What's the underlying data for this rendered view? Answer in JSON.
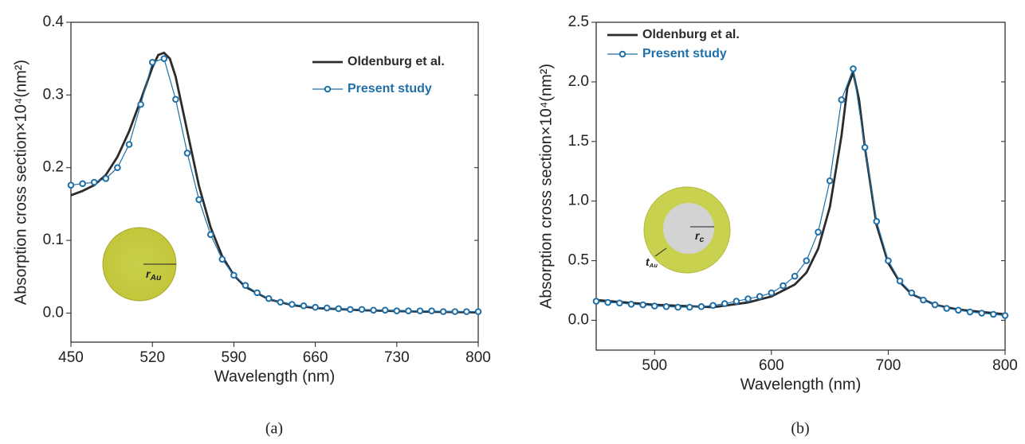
{
  "chart_data": [
    {
      "type": "line",
      "caption": "(a)",
      "xlabel": "Wavelength (nm)",
      "ylabel": "Absorption cross section×10⁴(nm²)",
      "xlim": [
        450,
        800
      ],
      "xticks": [
        450,
        520,
        590,
        660,
        730,
        800
      ],
      "ylim": [
        -0.04,
        0.4
      ],
      "yticks": [
        {
          "value": 0,
          "label": "0.0"
        },
        0.1,
        0.2,
        0.3,
        0.4
      ],
      "legend": "upper right",
      "annotations": [
        {
          "text": "r",
          "subscript": "Au"
        }
      ],
      "series": [
        {
          "name": "Oldenburg et al.",
          "color": "#2b2b2b",
          "marker": "none",
          "x": [
            450,
            460,
            470,
            480,
            490,
            500,
            510,
            520,
            525,
            530,
            535,
            540,
            550,
            560,
            570,
            580,
            590,
            600,
            620,
            640,
            660,
            700,
            750,
            800
          ],
          "values": [
            0.162,
            0.168,
            0.176,
            0.19,
            0.215,
            0.25,
            0.293,
            0.338,
            0.355,
            0.358,
            0.35,
            0.325,
            0.25,
            0.175,
            0.118,
            0.078,
            0.052,
            0.036,
            0.019,
            0.011,
            0.007,
            0.004,
            0.002,
            0.001
          ]
        },
        {
          "name": "Present study",
          "color": "#1f6fa8",
          "marker": "o",
          "x": [
            450,
            460,
            470,
            480,
            490,
            500,
            510,
            520,
            530,
            540,
            550,
            560,
            570,
            580,
            590,
            600,
            610,
            620,
            630,
            640,
            650,
            660,
            670,
            680,
            690,
            700,
            710,
            720,
            730,
            740,
            750,
            760,
            770,
            780,
            790,
            800
          ],
          "values": [
            0.176,
            0.178,
            0.18,
            0.185,
            0.2,
            0.232,
            0.287,
            0.345,
            0.35,
            0.294,
            0.22,
            0.156,
            0.108,
            0.074,
            0.052,
            0.038,
            0.028,
            0.02,
            0.015,
            0.012,
            0.01,
            0.008,
            0.007,
            0.006,
            0.005,
            0.005,
            0.004,
            0.004,
            0.003,
            0.003,
            0.003,
            0.003,
            0.002,
            0.002,
            0.002,
            0.002
          ]
        }
      ]
    },
    {
      "type": "line",
      "caption": "(b)",
      "xlabel": "Wavelength (nm)",
      "ylabel": "Absorption cross section×10⁴(nm²)",
      "xlim": [
        450,
        800
      ],
      "xticks": [
        500,
        600,
        700,
        800
      ],
      "ylim": [
        -0.25,
        2.5
      ],
      "yticks": [
        {
          "value": 0,
          "label": "0.0"
        },
        0.5,
        {
          "value": 1,
          "label": "1.0"
        },
        1.5,
        {
          "value": 2,
          "label": "2.0"
        },
        2.5
      ],
      "legend": "upper left",
      "annotations": [
        {
          "text": "r",
          "subscript": "c"
        },
        {
          "text": "t",
          "subscript": "Au"
        }
      ],
      "series": [
        {
          "name": "Oldenburg et al.",
          "color": "#2b2b2b",
          "marker": "none",
          "x": [
            450,
            500,
            550,
            580,
            600,
            620,
            630,
            640,
            650,
            660,
            665,
            670,
            675,
            680,
            690,
            700,
            710,
            720,
            740,
            760,
            800
          ],
          "values": [
            0.17,
            0.13,
            0.11,
            0.15,
            0.2,
            0.3,
            0.4,
            0.6,
            0.95,
            1.55,
            1.95,
            2.08,
            1.85,
            1.45,
            0.8,
            0.48,
            0.32,
            0.22,
            0.13,
            0.09,
            0.05
          ]
        },
        {
          "name": "Present study",
          "color": "#1f6fa8",
          "marker": "o",
          "x": [
            450,
            460,
            470,
            480,
            490,
            500,
            510,
            520,
            530,
            540,
            550,
            560,
            570,
            580,
            590,
            600,
            610,
            620,
            630,
            640,
            650,
            660,
            670,
            680,
            690,
            700,
            710,
            720,
            730,
            740,
            750,
            760,
            770,
            780,
            790,
            800
          ],
          "values": [
            0.16,
            0.15,
            0.145,
            0.135,
            0.13,
            0.12,
            0.115,
            0.11,
            0.11,
            0.115,
            0.125,
            0.14,
            0.16,
            0.18,
            0.2,
            0.23,
            0.29,
            0.37,
            0.5,
            0.74,
            1.17,
            1.85,
            2.11,
            1.45,
            0.83,
            0.5,
            0.33,
            0.23,
            0.17,
            0.13,
            0.1,
            0.085,
            0.07,
            0.06,
            0.05,
            0.04
          ]
        }
      ]
    }
  ]
}
